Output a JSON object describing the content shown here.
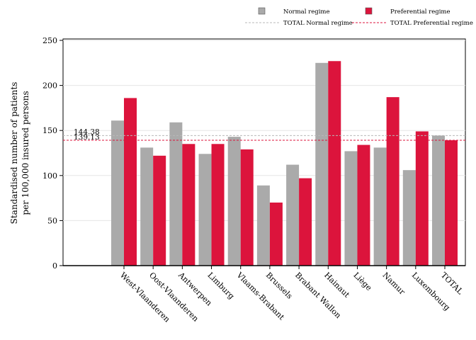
{
  "chart_data": {
    "type": "bar",
    "ylabel_lines": [
      "Standardised number of patients",
      "per 100,000 insured persons"
    ],
    "xlabel": "",
    "ylim": [
      0,
      250
    ],
    "yticks": [
      0,
      50,
      100,
      150,
      200,
      250
    ],
    "grid": true,
    "legend_position": "top-right",
    "categories": [
      "West-Vlaanderen",
      "Oost-Vlaanderen",
      "Antwerpen",
      "Limburg",
      "Vlaams-Brabant",
      "Brussels",
      "Brabant Wallon",
      "Hainaut",
      "Liège",
      "Namur",
      "Luxembourg",
      "TOTAL"
    ],
    "series": [
      {
        "name": "Normal regime",
        "color": "#aaaaaa",
        "values": [
          161,
          131,
          159,
          124,
          143,
          89,
          112,
          225,
          127,
          131,
          106,
          144.38
        ]
      },
      {
        "name": "Preferential regime",
        "color": "#dc143c",
        "values": [
          186,
          122,
          135,
          135,
          129,
          70,
          97,
          227,
          134,
          187,
          149,
          139.13
        ]
      }
    ],
    "reference_lines": [
      {
        "name": "TOTAL Normal regime",
        "value": 144.38,
        "label": "144.38",
        "color": "#b8b8b8"
      },
      {
        "name": "TOTAL Preferential regime",
        "value": 139.13,
        "label": "139.13",
        "color": "#dc143c"
      }
    ]
  }
}
